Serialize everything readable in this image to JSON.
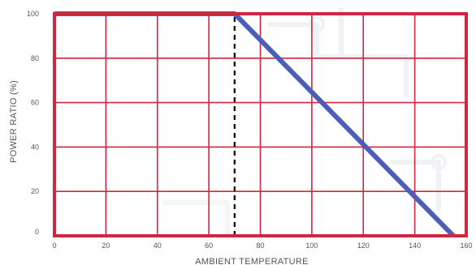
{
  "chart_data": {
    "type": "line",
    "title": "",
    "xlabel": "AMBIENT TEMPERATURE",
    "ylabel": "POWER RATIO (%)",
    "xlim": [
      0,
      160
    ],
    "ylim": [
      0,
      100
    ],
    "xticks": [
      "0",
      "20",
      "40",
      "60",
      "80",
      "100",
      "120",
      "140",
      "160"
    ],
    "yticks": [
      "0",
      "20",
      "40",
      "60",
      "80",
      "100"
    ],
    "grid": true,
    "series": [
      {
        "values": [
          [
            0,
            100
          ],
          [
            70,
            100
          ],
          [
            155,
            0
          ]
        ],
        "color": "#4a5fb5"
      }
    ],
    "annotations": [
      {
        "type": "vertical-dashed-line",
        "x": 70,
        "from_y": 0,
        "to_y": 100,
        "color": "#000000"
      }
    ],
    "colors": {
      "frame": "#d0263f",
      "grid": "#d0263f",
      "curve": "#4a5fb5"
    }
  }
}
